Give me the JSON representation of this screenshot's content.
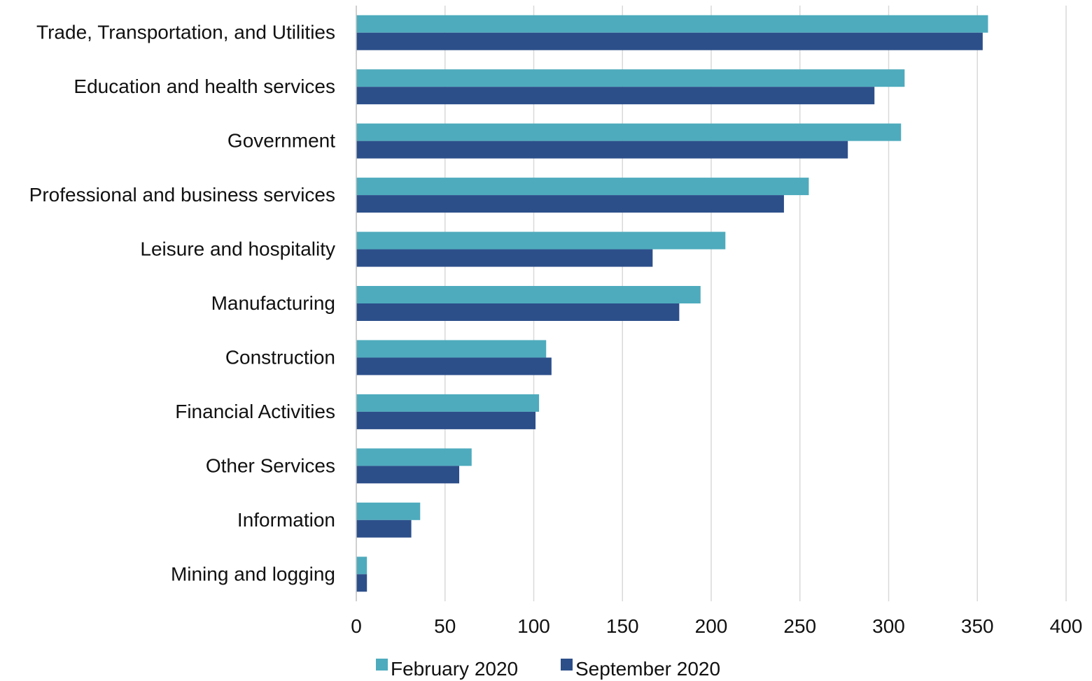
{
  "chart_data": {
    "type": "bar",
    "orientation": "horizontal",
    "title": "",
    "xlabel": "",
    "ylabel": "",
    "categories": [
      "Trade, Transportation, and Utilities",
      "Education and health services",
      "Government",
      "Professional and business services",
      "Leisure and hospitality",
      "Manufacturing",
      "Construction",
      "Financial Activities",
      "Other Services",
      "Information",
      "Mining and logging"
    ],
    "series": [
      {
        "name": "February 2020",
        "color": "#4eabbd",
        "values": [
          356,
          309,
          307,
          255,
          208,
          194,
          107,
          103,
          65,
          36,
          6
        ]
      },
      {
        "name": "September 2020",
        "color": "#2c4f8a",
        "values": [
          353,
          292,
          277,
          241,
          167,
          182,
          110,
          101,
          58,
          31,
          6
        ]
      }
    ],
    "xlim": [
      0,
      400
    ],
    "xticks": [
      0,
      50,
      100,
      150,
      200,
      250,
      300,
      350,
      400
    ],
    "tick_labels": [
      "0",
      "50",
      "100",
      "150",
      "200",
      "250",
      "300",
      "350",
      "400"
    ],
    "grid": true,
    "legend": "bottom"
  }
}
